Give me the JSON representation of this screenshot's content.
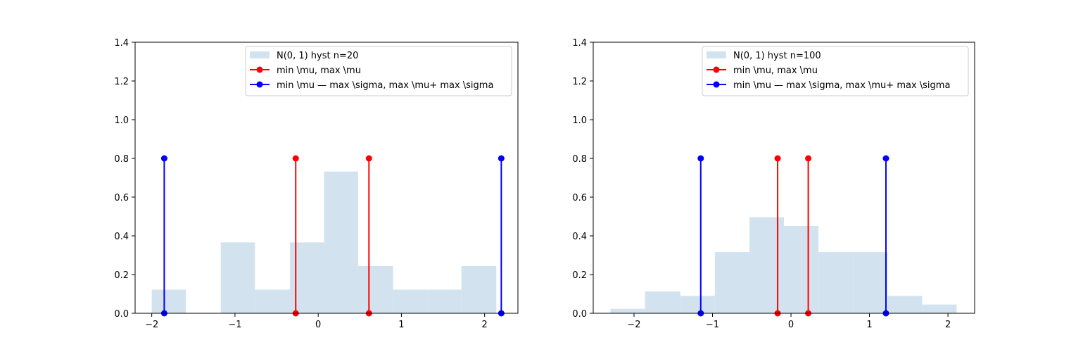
{
  "chart_data": [
    {
      "type": "bar",
      "hist_bins": [
        {
          "x0": -2.0,
          "x1": -1.59,
          "height": 0.122
        },
        {
          "x0": -1.59,
          "x1": -1.17,
          "height": 0.0
        },
        {
          "x0": -1.17,
          "x1": -0.76,
          "height": 0.366
        },
        {
          "x0": -0.76,
          "x1": -0.34,
          "height": 0.122
        },
        {
          "x0": -0.34,
          "x1": 0.07,
          "height": 0.366
        },
        {
          "x0": 0.07,
          "x1": 0.48,
          "height": 0.732
        },
        {
          "x0": 0.48,
          "x1": 0.9,
          "height": 0.244
        },
        {
          "x0": 0.9,
          "x1": 1.31,
          "height": 0.122
        },
        {
          "x0": 1.31,
          "x1": 1.72,
          "height": 0.122
        },
        {
          "x0": 1.72,
          "x1": 2.14,
          "height": 0.244
        }
      ],
      "stems": [
        {
          "series": 2,
          "x": -1.85,
          "y": 0.8
        },
        {
          "series": 1,
          "x": -0.27,
          "y": 0.8
        },
        {
          "series": 1,
          "x": 0.61,
          "y": 0.8
        },
        {
          "series": 2,
          "x": 2.2,
          "y": 0.8
        }
      ],
      "legend": [
        "N(0, 1) hyst n=20",
        "min \\mu, max \\mu",
        "min \\mu — max \\sigma, max \\mu+ max \\sigma"
      ],
      "xlim": [
        -2.2,
        2.4
      ],
      "ylim": [
        0,
        1.4
      ],
      "xticks": [
        -2,
        -1,
        0,
        1,
        2
      ],
      "xtick_labels": [
        "−2",
        "−1",
        "0",
        "1",
        "2"
      ],
      "yticks": [
        0.0,
        0.2,
        0.4,
        0.6,
        0.8,
        1.0,
        1.2,
        1.4
      ],
      "ytick_labels": [
        "0.0",
        "0.2",
        "0.4",
        "0.6",
        "0.8",
        "1.0",
        "1.2",
        "1.4"
      ],
      "legend_position": "top-right"
    },
    {
      "type": "bar",
      "hist_bins": [
        {
          "x0": -2.3,
          "x1": -1.86,
          "height": 0.023
        },
        {
          "x0": -1.86,
          "x1": -1.41,
          "height": 0.113
        },
        {
          "x0": -1.41,
          "x1": -0.97,
          "height": 0.09
        },
        {
          "x0": -0.97,
          "x1": -0.53,
          "height": 0.316
        },
        {
          "x0": -0.53,
          "x1": -0.09,
          "height": 0.496
        },
        {
          "x0": -0.09,
          "x1": 0.35,
          "height": 0.451
        },
        {
          "x0": 0.35,
          "x1": 0.79,
          "height": 0.316
        },
        {
          "x0": 0.79,
          "x1": 1.23,
          "height": 0.316
        },
        {
          "x0": 1.23,
          "x1": 1.67,
          "height": 0.09
        },
        {
          "x0": 1.67,
          "x1": 2.11,
          "height": 0.045
        }
      ],
      "stems": [
        {
          "series": 2,
          "x": -1.15,
          "y": 0.8
        },
        {
          "series": 1,
          "x": -0.17,
          "y": 0.8
        },
        {
          "series": 1,
          "x": 0.22,
          "y": 0.8
        },
        {
          "series": 2,
          "x": 1.21,
          "y": 0.8
        }
      ],
      "legend": [
        "N(0, 1) hyst n=100",
        "min \\mu, max \\mu",
        "min \\mu — max \\sigma, max \\mu+ max \\sigma"
      ],
      "xlim": [
        -2.52,
        2.34
      ],
      "ylim": [
        0,
        1.4
      ],
      "xticks": [
        -2,
        -1,
        0,
        1,
        2
      ],
      "xtick_labels": [
        "−2",
        "−1",
        "0",
        "1",
        "2"
      ],
      "yticks": [
        0.0,
        0.2,
        0.4,
        0.6,
        0.8,
        1.0,
        1.2,
        1.4
      ],
      "ytick_labels": [
        "0.0",
        "0.2",
        "0.4",
        "0.6",
        "0.8",
        "1.0",
        "1.2",
        "1.4"
      ],
      "legend_position": "top-right"
    }
  ],
  "colors": {
    "hist": "#d2e3ef",
    "series1": "#ff0000",
    "series2": "#0000ff",
    "axes": "#000000"
  }
}
